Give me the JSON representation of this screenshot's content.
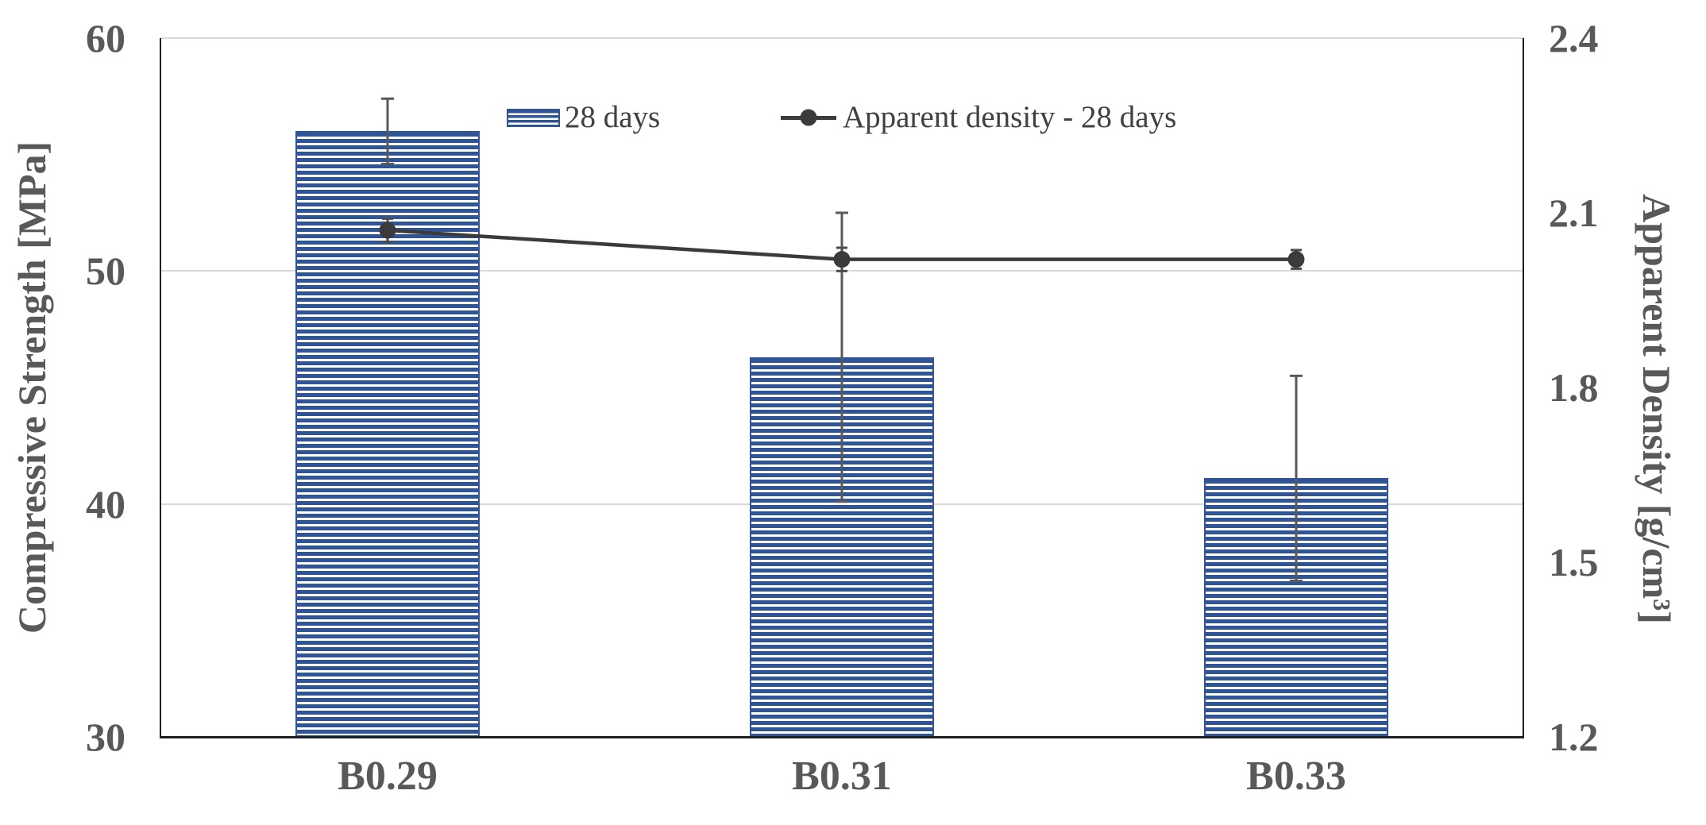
{
  "chart_data": {
    "type": "combo-bar-line",
    "categories": [
      "B0.29",
      "B0.31",
      "B0.33"
    ],
    "series": [
      {
        "name": "28 days",
        "type": "bar",
        "axis": "left",
        "values": [
          56.0,
          46.3,
          41.1
        ],
        "error": [
          1.4,
          6.2,
          4.4
        ],
        "color": "#2F5597",
        "fill_pattern": "horizontal-stripes"
      },
      {
        "name": "Apparent density - 28 days",
        "type": "line",
        "axis": "right",
        "values": [
          2.07,
          2.02,
          2.02
        ],
        "error": [
          0.02,
          0.02,
          0.016
        ],
        "color": "#3B3B3B",
        "marker": "circle"
      }
    ],
    "left_axis": {
      "label": "Compressive Strength [MPa]",
      "min": 30,
      "max": 60,
      "ticks": [
        {
          "label": "60",
          "value": 60
        },
        {
          "label": "50",
          "value": 50
        },
        {
          "label": "40",
          "value": 40
        },
        {
          "label": "30",
          "value": 30
        }
      ]
    },
    "right_axis": {
      "label": "Apparent Density [g/cm³]",
      "min": 1.2,
      "max": 2.4,
      "ticks": [
        {
          "label": "2.4",
          "value": 2.4
        },
        {
          "label": "2.1",
          "value": 2.1
        },
        {
          "label": "1.8",
          "value": 1.8
        },
        {
          "label": "1.5",
          "value": 1.5
        },
        {
          "label": "1.2",
          "value": 1.2
        }
      ]
    },
    "grid": "horizontal-major",
    "gridline_color": "#D9D9D9",
    "axis_line_color": "#1F1F1F",
    "text_color": "#595959",
    "error_bar_color": "#595959",
    "legend_position": "top-inside"
  }
}
